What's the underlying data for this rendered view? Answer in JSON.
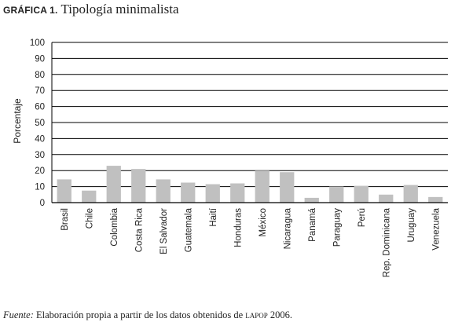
{
  "figure": {
    "label": "GRÁFICA 1.",
    "title": "Tipología minimalista"
  },
  "source": {
    "label": "Fuente:",
    "text_before": "Elaboración propia a partir de los datos obtenidos de",
    "org": "lapop",
    "text_after": "2006."
  },
  "colors": {
    "bar": "#c0c0c0",
    "grid": "#000000",
    "text": "#222222"
  },
  "chart_data": {
    "type": "bar",
    "title": "",
    "xlabel": "",
    "ylabel": "Porcentaje",
    "ylim": [
      0,
      100
    ],
    "yticks": [
      0,
      10,
      20,
      30,
      40,
      50,
      60,
      70,
      80,
      90,
      100
    ],
    "grid": true,
    "legend": "none",
    "categories": [
      "Brasil",
      "Chile",
      "Colombia",
      "Costa Rica",
      "El Salvador",
      "Guatemala",
      "Haití",
      "Honduras",
      "México",
      "Nicaragua",
      "Panamá",
      "Paraguay",
      "Perú",
      "Rep. Dominicana",
      "Uruguay",
      "Venezuela"
    ],
    "values": [
      14.5,
      7.5,
      23,
      21,
      14.5,
      12.5,
      11.5,
      12,
      20,
      19,
      3,
      10,
      10.5,
      5,
      11,
      3.5
    ]
  }
}
